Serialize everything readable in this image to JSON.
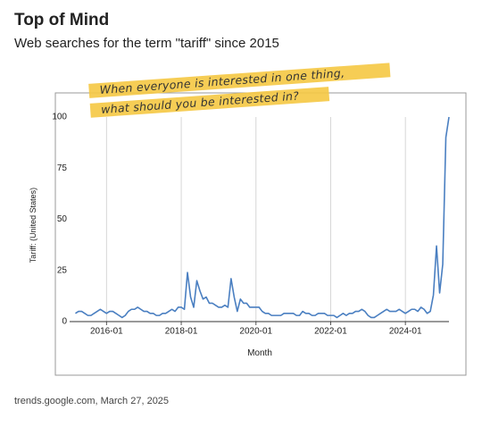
{
  "chart_data": {
    "type": "line",
    "title": "Top of Mind",
    "subtitle": "Web searches for the term \"tariff\" since 2015",
    "annotation": [
      "When everyone is interested in one thing,",
      "what should you be interested in?"
    ],
    "ylabel": "Tariff: (United States)",
    "xlabel": "Month",
    "source": "trends.google.com, March 27, 2025",
    "x": [
      "2015-03",
      "2015-04",
      "2015-05",
      "2015-06",
      "2015-07",
      "2015-08",
      "2015-09",
      "2015-10",
      "2015-11",
      "2015-12",
      "2016-01",
      "2016-02",
      "2016-03",
      "2016-04",
      "2016-05",
      "2016-06",
      "2016-07",
      "2016-08",
      "2016-09",
      "2016-10",
      "2016-11",
      "2016-12",
      "2017-01",
      "2017-02",
      "2017-03",
      "2017-04",
      "2017-05",
      "2017-06",
      "2017-07",
      "2017-08",
      "2017-09",
      "2017-10",
      "2017-11",
      "2017-12",
      "2018-01",
      "2018-02",
      "2018-03",
      "2018-04",
      "2018-05",
      "2018-06",
      "2018-07",
      "2018-08",
      "2018-09",
      "2018-10",
      "2018-11",
      "2018-12",
      "2019-01",
      "2019-02",
      "2019-03",
      "2019-04",
      "2019-05",
      "2019-06",
      "2019-07",
      "2019-08",
      "2019-09",
      "2019-10",
      "2019-11",
      "2019-12",
      "2020-01",
      "2020-02",
      "2020-03",
      "2020-04",
      "2020-05",
      "2020-06",
      "2020-07",
      "2020-08",
      "2020-09",
      "2020-10",
      "2020-11",
      "2020-12",
      "2021-01",
      "2021-02",
      "2021-03",
      "2021-04",
      "2021-05",
      "2021-06",
      "2021-07",
      "2021-08",
      "2021-09",
      "2021-10",
      "2021-11",
      "2021-12",
      "2022-01",
      "2022-02",
      "2022-03",
      "2022-04",
      "2022-05",
      "2022-06",
      "2022-07",
      "2022-08",
      "2022-09",
      "2022-10",
      "2022-11",
      "2022-12",
      "2023-01",
      "2023-02",
      "2023-03",
      "2023-04",
      "2023-05",
      "2023-06",
      "2023-07",
      "2023-08",
      "2023-09",
      "2023-10",
      "2023-11",
      "2023-12",
      "2024-01",
      "2024-02",
      "2024-03",
      "2024-04",
      "2024-05",
      "2024-06",
      "2024-07",
      "2024-08",
      "2024-09",
      "2024-10",
      "2024-11",
      "2024-12",
      "2025-01",
      "2025-02",
      "2025-03"
    ],
    "series": [
      {
        "name": "Tariff: (United States)",
        "color": "#4a7fc1",
        "values": [
          4,
          5,
          5,
          4,
          3,
          3,
          4,
          5,
          6,
          5,
          4,
          5,
          5,
          4,
          3,
          2,
          3,
          5,
          6,
          6,
          7,
          6,
          5,
          5,
          4,
          4,
          3,
          3,
          4,
          4,
          5,
          6,
          5,
          7,
          7,
          6,
          24,
          12,
          7,
          20,
          15,
          11,
          12,
          9,
          9,
          8,
          7,
          7,
          8,
          7,
          21,
          12,
          5,
          11,
          9,
          9,
          7,
          7,
          7,
          7,
          5,
          4,
          4,
          3,
          3,
          3,
          3,
          4,
          4,
          4,
          4,
          3,
          3,
          5,
          4,
          4,
          3,
          3,
          4,
          4,
          4,
          3,
          3,
          3,
          2,
          3,
          4,
          3,
          4,
          4,
          5,
          5,
          6,
          5,
          3,
          2,
          2,
          3,
          4,
          5,
          6,
          5,
          5,
          5,
          6,
          5,
          4,
          5,
          6,
          6,
          5,
          7,
          6,
          4,
          5,
          13,
          37,
          14,
          28,
          90,
          100
        ]
      }
    ],
    "xlim": [
      "2015-02",
      "2025-03"
    ],
    "xticks": [
      "2016-01",
      "2018-01",
      "2020-01",
      "2022-01",
      "2024-01"
    ],
    "ylim": [
      0,
      100
    ],
    "yticks": [
      0,
      25,
      50,
      75,
      100
    ],
    "grid": "x"
  }
}
